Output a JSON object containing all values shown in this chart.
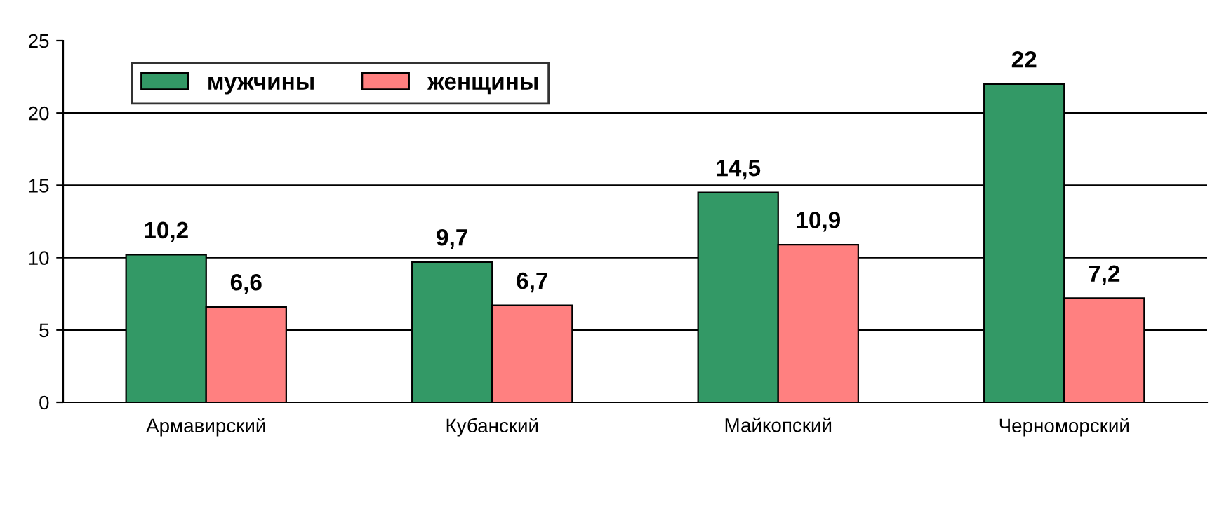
{
  "chart_data": {
    "type": "bar",
    "categories": [
      "Армавирский",
      "Кубанский",
      "Майкопский",
      "Черноморский"
    ],
    "series": [
      {
        "name": "мужчины",
        "color": "#339966",
        "values": [
          10.2,
          9.7,
          14.5,
          22
        ],
        "value_labels": [
          "10,2",
          "9,7",
          "14,5",
          "22"
        ]
      },
      {
        "name": "женщины",
        "color": "#ff8080",
        "values": [
          6.6,
          6.7,
          10.9,
          7.2
        ],
        "value_labels": [
          "6,6",
          "6,7",
          "10,9",
          "7,2"
        ]
      }
    ],
    "ylim": [
      0,
      25
    ],
    "yticks": [
      0,
      5,
      10,
      15,
      20,
      25
    ],
    "grid": "y",
    "legend": "top left"
  }
}
